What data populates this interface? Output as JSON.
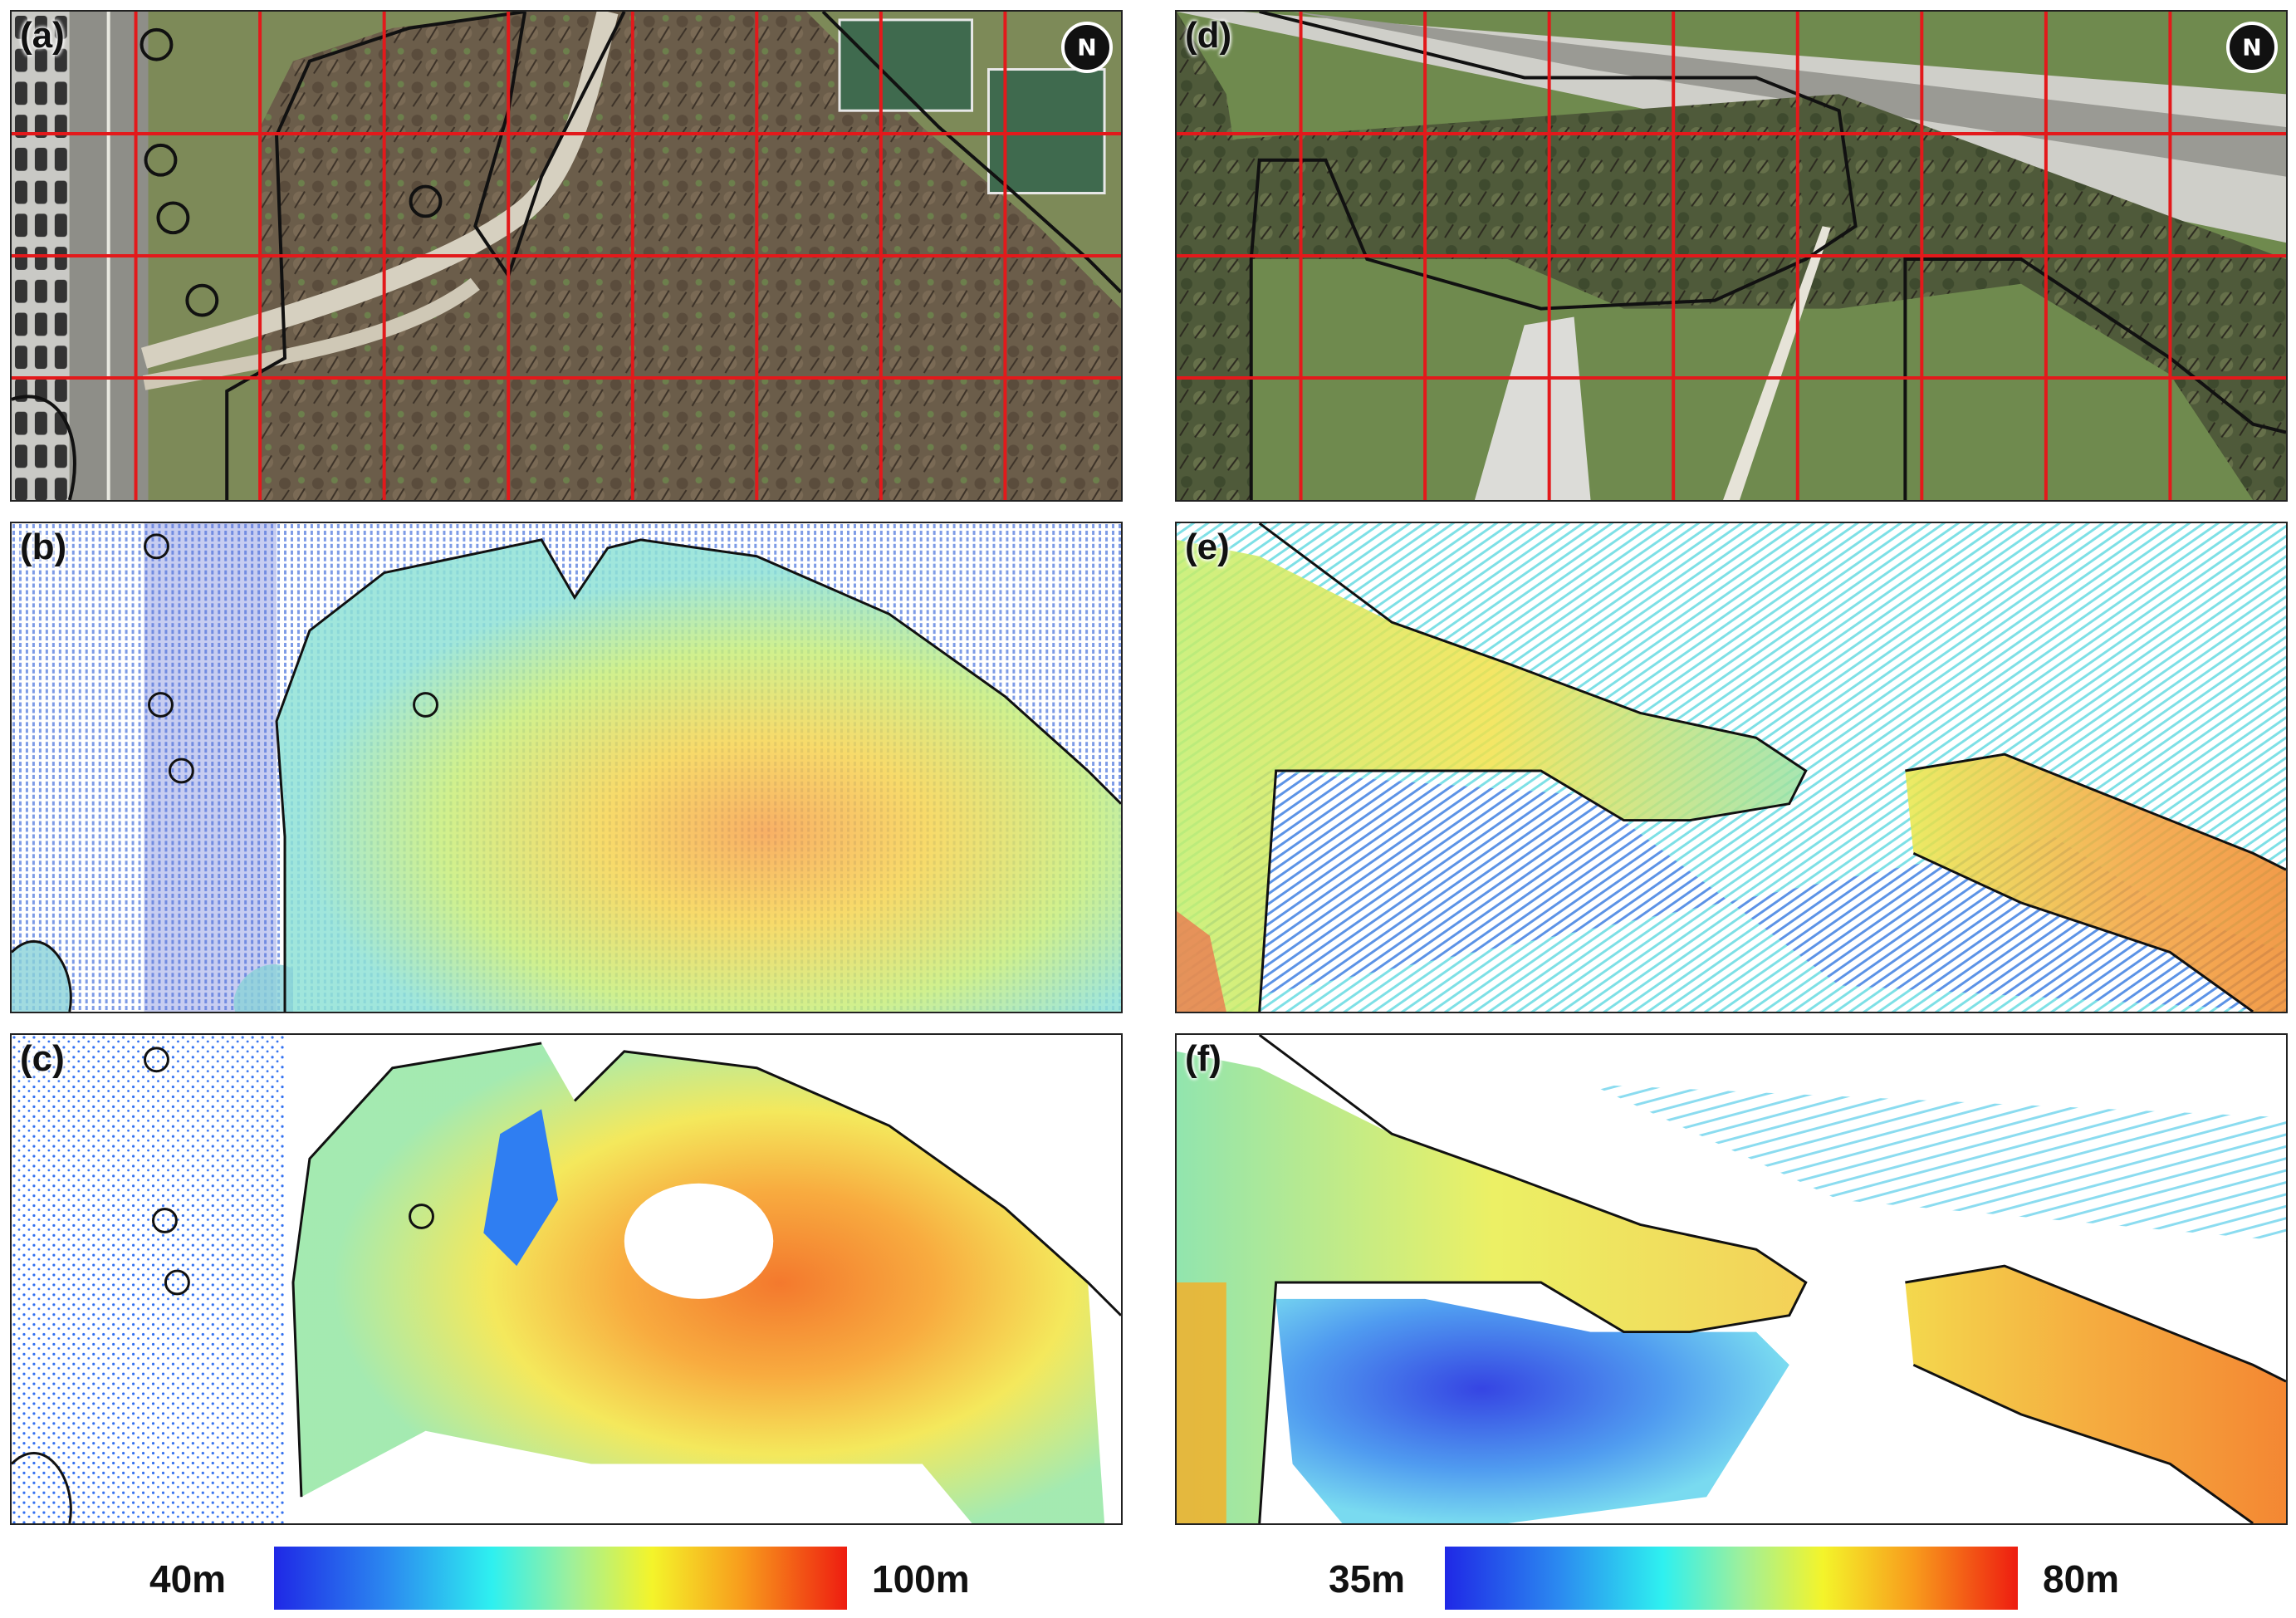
{
  "panels": {
    "a": {
      "label": "(a)",
      "compass_glyph": "N"
    },
    "b": {
      "label": "(b)"
    },
    "c": {
      "label": "(c)"
    },
    "d": {
      "label": "(d)",
      "compass_glyph": "N"
    },
    "e": {
      "label": "(e)"
    },
    "f": {
      "label": "(f)"
    }
  },
  "colorbars": {
    "left": {
      "min_label": "40m",
      "max_label": "100m"
    },
    "right": {
      "min_label": "35m",
      "max_label": "80m"
    }
  },
  "icons": {
    "compass": "north-arrow-icon"
  },
  "colors": {
    "grid": "#e3191b",
    "boundary": "#111111",
    "colormap": [
      "#1f28e6",
      "#2b8af0",
      "#2ef0f0",
      "#9ff09a",
      "#f4f42a",
      "#f89a1c",
      "#ee1c10"
    ]
  }
}
